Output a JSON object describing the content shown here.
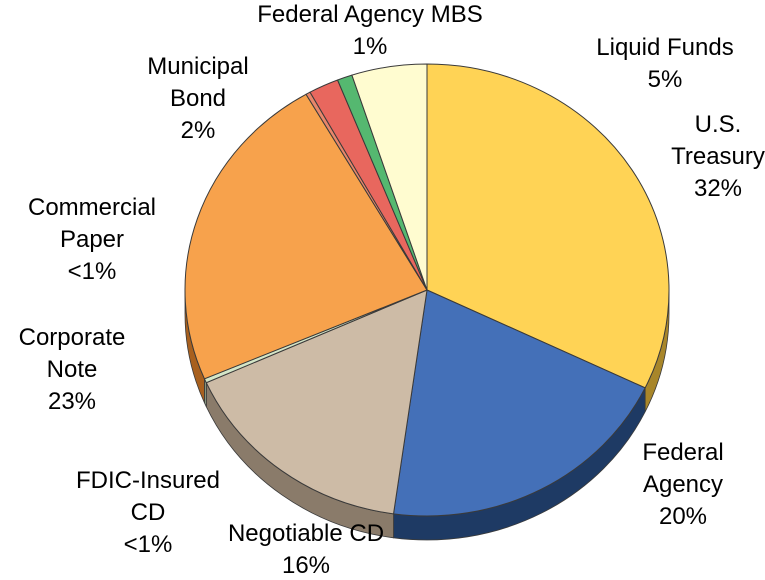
{
  "chart_data": {
    "type": "pie",
    "slices": [
      {
        "label": [
          "U.S.",
          "Treasury"
        ],
        "pct_text": "32%",
        "value": 32,
        "color": "#FFD355",
        "side": "#A8862A"
      },
      {
        "label": [
          "Federal",
          "Agency"
        ],
        "pct_text": "20%",
        "value": 20,
        "color": "#4470B8",
        "side": "#1E3A64"
      },
      {
        "label": [
          "Negotiable CD"
        ],
        "pct_text": "16%",
        "value": 16,
        "color": "#CDBBA6",
        "side": "#8A7B6A"
      },
      {
        "label": [
          "FDIC-Insured",
          "CD"
        ],
        "pct_text": "<1%",
        "value": 0.3,
        "color": "#D4E6C8",
        "side": "#8FA085"
      },
      {
        "label": [
          "Corporate",
          "Note"
        ],
        "pct_text": "23%",
        "value": 23,
        "color": "#F7A24C",
        "side": "#A8601E"
      },
      {
        "label": [
          "Commercial",
          "Paper"
        ],
        "pct_text": "<1%",
        "value": 0.3,
        "color": "#E8866A",
        "side": "#A0503A"
      },
      {
        "label": [
          "Municipal",
          "Bond"
        ],
        "pct_text": "2%",
        "value": 2,
        "color": "#E8675E",
        "side": "#A03A32"
      },
      {
        "label": [
          "Federal Agency MBS"
        ],
        "pct_text": "1%",
        "value": 1,
        "color": "#55B870",
        "side": "#2E7040"
      },
      {
        "label": [
          "Liquid Funds"
        ],
        "pct_text": "5%",
        "value": 5,
        "color": "#FFFCD0",
        "side": "#B8B48A"
      }
    ]
  }
}
